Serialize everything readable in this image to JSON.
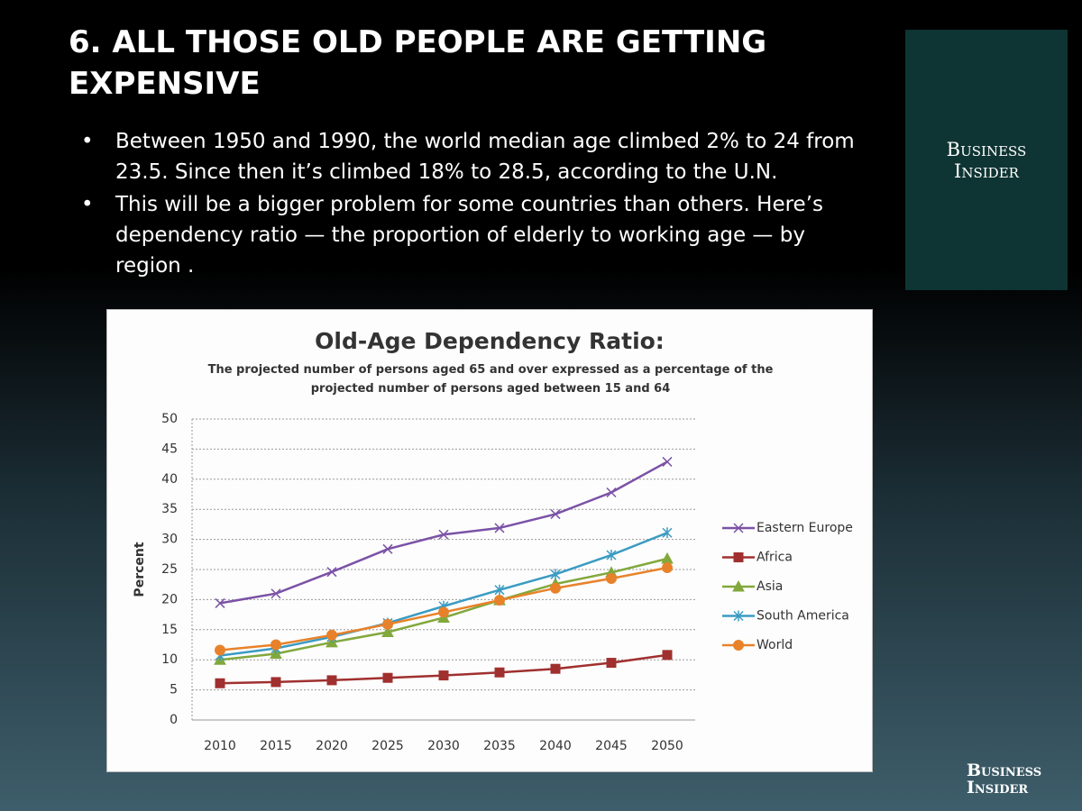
{
  "slide_title": "6.  ALL THOSE OLD PEOPLE ARE GETTING EXPENSIVE",
  "bullets": [
    "Between 1950 and 1990, the world median age climbed 2% to 24 from 23.5. Since then it’s climbed  18% to 28.5, according to the U.N.",
    "This will be a bigger problem for some countries than others. Here’s dependency ratio — the proportion of elderly to working age — by region ."
  ],
  "logo": [
    "Business",
    "Insider"
  ],
  "footer_logo": [
    "Business",
    "Insider"
  ],
  "chart_data": {
    "type": "line",
    "title": "Old-Age Dependency Ratio:",
    "subtitle": "The projected number of persons aged 65 and over expressed as a percentage of the projected number of persons aged between 15 and 64",
    "y_label": "Percent",
    "categories": [
      "2010",
      "2015",
      "2020",
      "2025",
      "2030",
      "2035",
      "2040",
      "2045",
      "2050"
    ],
    "series": [
      {
        "name": "Eastern Europe",
        "color": "#7b52a6",
        "marker": "x",
        "values": [
          19.4,
          21,
          24.6,
          28.4,
          30.8,
          31.9,
          34.2,
          37.8,
          42.9
        ]
      },
      {
        "name": "Africa",
        "color": "#a0302f",
        "marker": "square",
        "values": [
          6.1,
          6.3,
          6.6,
          7.0,
          7.4,
          7.9,
          8.5,
          9.5,
          10.8
        ]
      },
      {
        "name": "Asia",
        "color": "#82a83c",
        "marker": "triangle",
        "values": [
          10.0,
          11.0,
          12.9,
          14.6,
          17.0,
          19.9,
          22.6,
          24.5,
          26.8
        ]
      },
      {
        "name": "South America",
        "color": "#3a9bc2",
        "marker": "star",
        "values": [
          10.7,
          11.9,
          13.8,
          16.1,
          18.9,
          21.6,
          24.2,
          27.4,
          31.1
        ]
      },
      {
        "name": "World",
        "color": "#e8822a",
        "marker": "circle",
        "values": [
          11.6,
          12.5,
          14.1,
          15.9,
          17.9,
          19.9,
          21.9,
          23.5,
          25.3
        ]
      }
    ],
    "ylim": [
      0,
      50
    ],
    "yticks": [
      0,
      5,
      10,
      15,
      20,
      25,
      30,
      35,
      40,
      45,
      50
    ],
    "grid": true,
    "legend": "right"
  }
}
